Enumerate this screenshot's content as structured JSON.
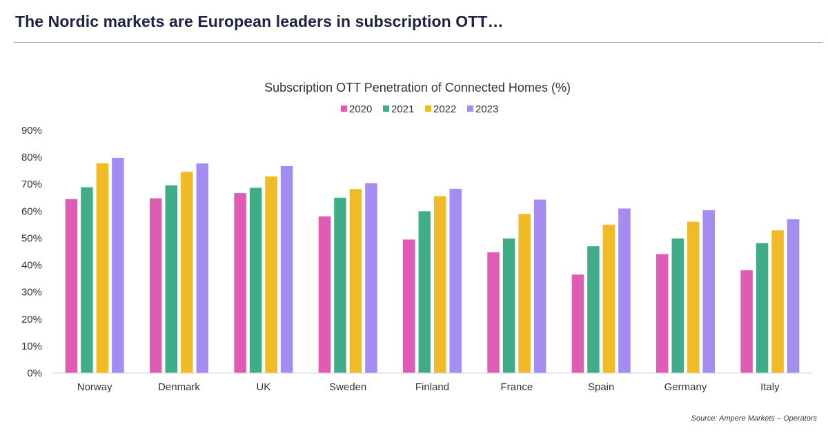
{
  "page": {
    "headline": "The Nordic markets are European leaders in subscription OTT…",
    "source": "Source: Ampere Markets – Operators"
  },
  "chart_data": {
    "type": "bar",
    "title": "Subscription OTT Penetration of Connected Homes (%)",
    "xlabel": "",
    "ylabel": "",
    "ylim": [
      0,
      90
    ],
    "yticks": [
      0,
      10,
      20,
      30,
      40,
      50,
      60,
      70,
      80,
      90
    ],
    "ytick_labels": [
      "0%",
      "10%",
      "20%",
      "30%",
      "40%",
      "50%",
      "60%",
      "70%",
      "80%",
      "90%"
    ],
    "grid": false,
    "legend_position": "top-center",
    "categories": [
      "Norway",
      "Denmark",
      "UK",
      "Sweden",
      "Finland",
      "France",
      "Spain",
      "Germany",
      "Italy"
    ],
    "series": [
      {
        "name": "2020",
        "color": "#e05bb4",
        "values": [
          64.5,
          64.8,
          66.7,
          58.1,
          49.5,
          44.8,
          36.5,
          44.1,
          38.1
        ]
      },
      {
        "name": "2021",
        "color": "#3fae88",
        "values": [
          68.9,
          69.6,
          68.7,
          65.0,
          60.0,
          49.9,
          47.0,
          49.9,
          48.2
        ]
      },
      {
        "name": "2022",
        "color": "#f0bb25",
        "values": [
          77.8,
          74.6,
          72.9,
          68.2,
          65.6,
          59.0,
          55.0,
          56.1,
          52.9
        ]
      },
      {
        "name": "2023",
        "color": "#a48cf2",
        "values": [
          79.8,
          77.7,
          76.7,
          70.4,
          68.3,
          64.3,
          61.0,
          60.4,
          57.0
        ]
      }
    ]
  }
}
